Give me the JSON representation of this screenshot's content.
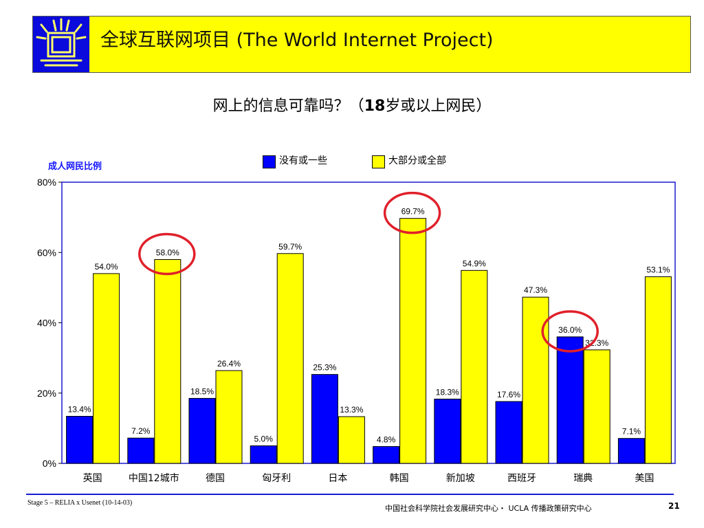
{
  "header": {
    "title": "全球互联网项目 (The World Internet Project)"
  },
  "subtitle": {
    "prefix": "网上的信息可靠吗？（",
    "bold": "18",
    "suffix": "岁或以上网民）"
  },
  "footer": {
    "left": "Stage 5 – RELIA x Usenet (10-14-03)",
    "center": "中国社会科学院社会发展研究中心・ UCLA 传播政策研究中心",
    "page": "21"
  },
  "colors": {
    "header_bg": "#ffff00",
    "logo_bg": "#0a0adc",
    "series_none": "#0000ff",
    "series_most": "#ffff00",
    "highlight_circle": "#e0202a",
    "ylabel": "#1515ff"
  },
  "chart_data": {
    "type": "bar",
    "ylabel": "成人网民比例",
    "ylim": [
      0,
      80
    ],
    "yticks": [
      "0%",
      "20%",
      "40%",
      "60%",
      "80%"
    ],
    "grid": false,
    "legend_position": "top",
    "categories": [
      "英国",
      "中国12城市",
      "德国",
      "匈牙利",
      "日本",
      "韩国",
      "新加坡",
      "西班牙",
      "瑞典",
      "美国"
    ],
    "series": [
      {
        "name": "没有或一些",
        "values": [
          13.4,
          7.2,
          18.5,
          5.0,
          25.3,
          4.8,
          18.3,
          17.6,
          36.0,
          7.1
        ],
        "labels": [
          "13.4%",
          "7.2%",
          "18.5%",
          "5.0%",
          "25.3%",
          "4.8%",
          "18.3%",
          "17.6%",
          "36.0%",
          "7.1%"
        ]
      },
      {
        "name": "大部分或全部",
        "values": [
          54.0,
          58.0,
          26.4,
          59.7,
          13.3,
          69.7,
          54.9,
          47.3,
          32.3,
          53.1
        ],
        "labels": [
          "54.0%",
          "58.0%",
          "26.4%",
          "59.7%",
          "13.3%",
          "69.7%",
          "54.9%",
          "47.3%",
          "32.3%",
          "53.1%"
        ]
      }
    ],
    "highlighted": [
      {
        "category": "中国12城市",
        "series": "大部分或全部"
      },
      {
        "category": "韩国",
        "series": "大部分或全部"
      },
      {
        "category": "瑞典",
        "series": "没有或一些"
      }
    ]
  }
}
